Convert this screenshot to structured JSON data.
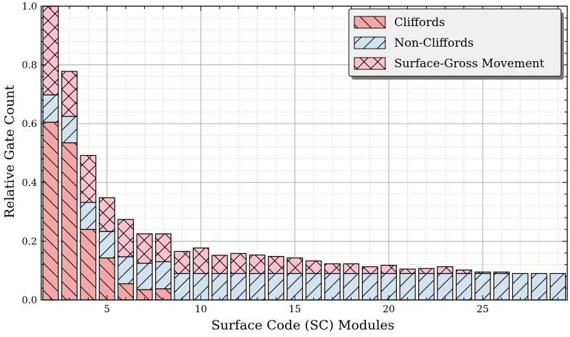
{
  "chart_data": {
    "type": "bar",
    "stacked": true,
    "title": "",
    "xlabel": "Surface Code (SC) Modules",
    "ylabel": "Relative Gate Count",
    "xlim": [
      1.5,
      29.5
    ],
    "ylim": [
      0,
      1.0
    ],
    "x_major_ticks": [
      5,
      10,
      15,
      20,
      25
    ],
    "y_major_ticks": [
      0.0,
      0.2,
      0.4,
      0.6,
      0.8,
      1.0
    ],
    "y_tick_labels": [
      "0.0",
      "0.2",
      "0.4",
      "0.6",
      "0.8",
      "1.0"
    ],
    "grid": true,
    "legend_position": "top-right",
    "x": [
      2,
      3,
      4,
      5,
      6,
      7,
      8,
      9,
      10,
      11,
      12,
      13,
      14,
      15,
      16,
      17,
      18,
      19,
      20,
      21,
      22,
      23,
      24,
      25,
      26,
      27,
      28,
      29
    ],
    "series": [
      {
        "name": "Cliffords",
        "color": "#f4a7a7",
        "hatch": "backslash",
        "values": [
          0.605,
          0.535,
          0.24,
          0.143,
          0.055,
          0.035,
          0.038,
          0,
          0,
          0,
          0,
          0,
          0,
          0,
          0,
          0,
          0,
          0,
          0,
          0,
          0,
          0,
          0,
          0,
          0,
          0,
          0,
          0
        ]
      },
      {
        "name": "Non-Cliffords",
        "color": "#d2e2ee",
        "hatch": "slash",
        "values": [
          0.093,
          0.09,
          0.092,
          0.09,
          0.092,
          0.09,
          0.092,
          0.09,
          0.09,
          0.09,
          0.09,
          0.09,
          0.09,
          0.09,
          0.09,
          0.09,
          0.09,
          0.09,
          0.09,
          0.09,
          0.09,
          0.09,
          0.09,
          0.09,
          0.09,
          0.09,
          0.09,
          0.09
        ]
      },
      {
        "name": "Surface-Gross Movement",
        "color": "#f8c2cf",
        "hatch": "cross",
        "values": [
          0.302,
          0.153,
          0.16,
          0.115,
          0.127,
          0.1,
          0.095,
          0.075,
          0.087,
          0.062,
          0.068,
          0.063,
          0.058,
          0.053,
          0.043,
          0.033,
          0.033,
          0.023,
          0.028,
          0.015,
          0.017,
          0.023,
          0.012,
          0.005,
          0.005,
          0.0,
          0.0,
          0.0
        ]
      }
    ]
  }
}
